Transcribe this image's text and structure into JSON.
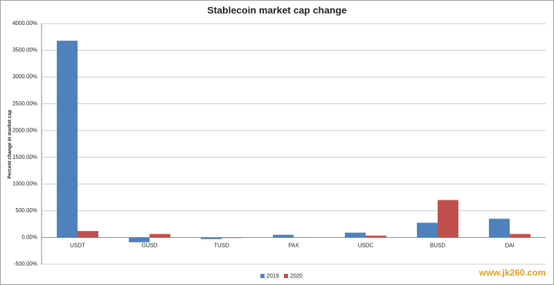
{
  "chart_data": {
    "type": "bar",
    "title": "Stablecoin market cap change",
    "y_label": "Percent change in market cap",
    "categories": [
      "USDT",
      "GUSD",
      "TUSD",
      "PAX",
      "USDC",
      "BUSD",
      "DAI"
    ],
    "series": [
      {
        "name": "2019",
        "color": "#4f81bd",
        "values": [
          3680,
          -90,
          -30,
          50,
          90,
          275,
          350
        ]
      },
      {
        "name": "2020",
        "color": "#c0504d",
        "values": [
          120,
          65,
          -10,
          5,
          35,
          700,
          65
        ]
      }
    ],
    "ylim": [
      -500,
      4000
    ],
    "yticks": [
      {
        "value": -500,
        "label": "-500.00%"
      },
      {
        "value": 0,
        "label": "0.00%"
      },
      {
        "value": 500,
        "label": "500.00%"
      },
      {
        "value": 1000,
        "label": "1000.00%"
      },
      {
        "value": 1500,
        "label": "1500.00%"
      },
      {
        "value": 2000,
        "label": "2000.00%"
      },
      {
        "value": 2500,
        "label": "2500.00%"
      },
      {
        "value": 3000,
        "label": "3000.00%"
      },
      {
        "value": 3500,
        "label": "3500.00%"
      },
      {
        "value": 4000,
        "label": "4000.00%"
      }
    ],
    "grid": true,
    "legend": "bottom",
    "watermark": "www.jk260.com"
  }
}
